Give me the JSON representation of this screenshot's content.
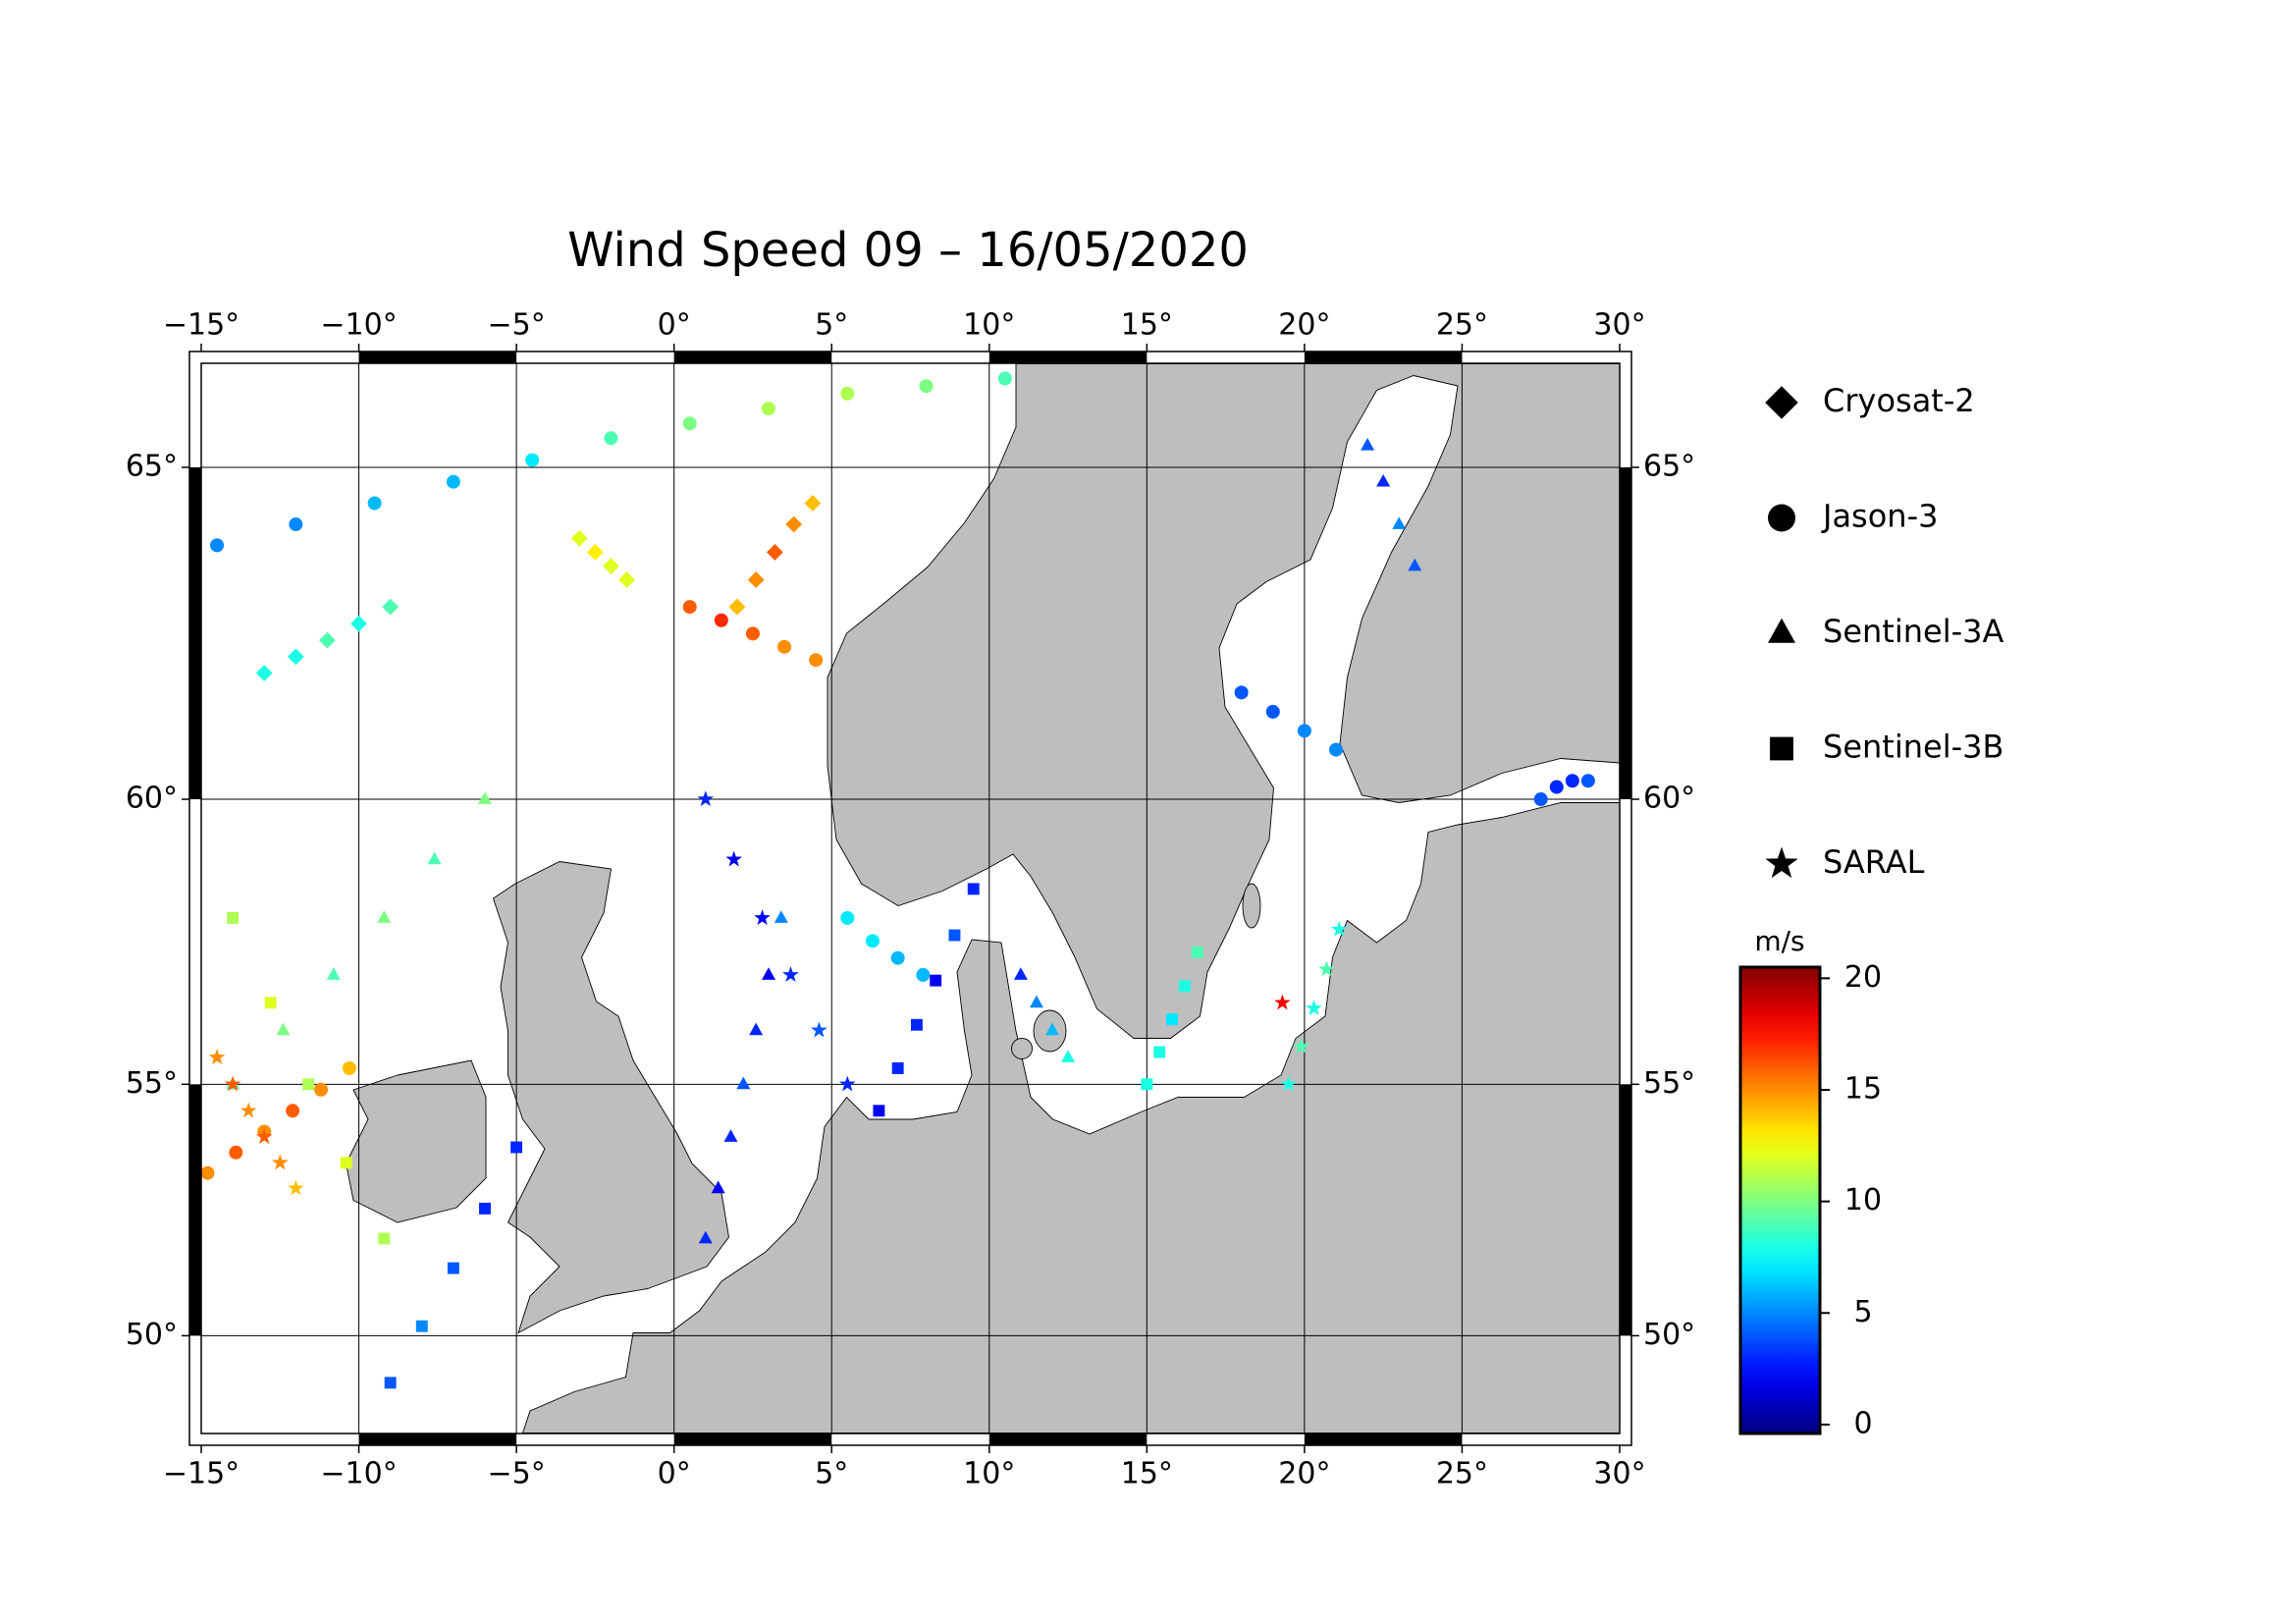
{
  "chart_data": {
    "type": "scatter",
    "title": "Wind Speed 09 – 16/05/2020",
    "projection": "mercator",
    "grid": true,
    "legend": "right",
    "xlim": [
      -15,
      30
    ],
    "ylim": [
      47.9,
      66.4
    ],
    "xticks": [
      {
        "value": -15,
        "label": "−15°"
      },
      {
        "value": -10,
        "label": "−10°"
      },
      {
        "value": -5,
        "label": "−5°"
      },
      {
        "value": 0,
        "label": "0°"
      },
      {
        "value": 5,
        "label": "5°"
      },
      {
        "value": 10,
        "label": "10°"
      },
      {
        "value": 15,
        "label": "15°"
      },
      {
        "value": 20,
        "label": "20°"
      },
      {
        "value": 25,
        "label": "25°"
      },
      {
        "value": 30,
        "label": "30°"
      }
    ],
    "yticks": [
      {
        "value": 50,
        "label": "50°"
      },
      {
        "value": 55,
        "label": "55°"
      },
      {
        "value": 60,
        "label": "60°"
      },
      {
        "value": 65,
        "label": "65°"
      }
    ],
    "colorbar": {
      "label": "m/s",
      "colormap": "jet",
      "clim": [
        -0.4,
        20.5
      ],
      "ticks": [
        0,
        5,
        10,
        15,
        20
      ]
    },
    "series": [
      {
        "name": "Cryosat-2",
        "marker": "diamond",
        "color": "#000000",
        "x": [
          2,
          2.6,
          3.2,
          3.8,
          4.4,
          -13,
          -12,
          -11,
          -10,
          -9,
          -3,
          -2.5,
          -2,
          -1.5
        ],
        "y": [
          63,
          63.4,
          63.8,
          64.2,
          64.5,
          62,
          62.25,
          62.5,
          62.75,
          63,
          64,
          63.8,
          63.6,
          63.4
        ],
        "values": [
          14,
          15,
          16,
          15,
          14,
          8,
          8,
          9,
          8,
          9,
          12,
          13,
          12,
          12
        ]
      },
      {
        "name": "Jason-3",
        "marker": "circle",
        "color": "#000000",
        "x": [
          -14.5,
          -12,
          -9.5,
          -7,
          -4.5,
          -2,
          0.5,
          3,
          5.5,
          8,
          10.5,
          -14.8,
          -13.9,
          -13,
          -12.1,
          -11.2,
          -10.3,
          0.5,
          1.5,
          2.5,
          3.5,
          4.5,
          18,
          19,
          20,
          21,
          5.5,
          6.3,
          7.1,
          7.9,
          27.5,
          28,
          28.5,
          29
        ],
        "y": [
          63.9,
          64.2,
          64.5,
          64.8,
          65.1,
          65.4,
          65.6,
          65.8,
          66,
          66.1,
          66.2,
          53.3,
          53.7,
          54.1,
          54.5,
          54.9,
          55.3,
          63,
          62.8,
          62.6,
          62.4,
          62.2,
          61.7,
          61.4,
          61.1,
          60.8,
          58,
          57.6,
          57.3,
          57,
          60,
          60.2,
          60.3,
          60.3
        ],
        "values": [
          5,
          5,
          6,
          6,
          7,
          9,
          10,
          11,
          11,
          10,
          9,
          15,
          16,
          15,
          16,
          15,
          14,
          16,
          17,
          16,
          15,
          15,
          4,
          4,
          5,
          5,
          7,
          7,
          6,
          6,
          4,
          3,
          3,
          4
        ]
      },
      {
        "name": "Sentinel-3A",
        "marker": "triangle",
        "color": "#000000",
        "x": [
          1,
          1.4,
          1.8,
          2.2,
          2.6,
          3,
          3.4,
          22,
          22.5,
          23,
          23.5,
          -14,
          -12.4,
          -10.8,
          -9.2,
          -7.6,
          -6,
          11,
          11.5,
          12,
          12.5
        ],
        "y": [
          52,
          53,
          54,
          55,
          56,
          57,
          58,
          65.3,
          64.8,
          64.2,
          63.6,
          55,
          56,
          57,
          58,
          59,
          60,
          57,
          56.5,
          56,
          55.5
        ],
        "values": [
          3,
          2,
          3,
          4,
          3,
          2,
          5,
          4,
          3,
          5,
          4,
          9,
          10,
          9,
          10,
          9,
          10,
          3,
          5,
          6,
          8
        ]
      },
      {
        "name": "Sentinel-3B",
        "marker": "square",
        "color": "#000000",
        "x": [
          6.5,
          7.1,
          7.7,
          8.3,
          8.9,
          9.5,
          -14,
          -12.8,
          -11.6,
          -10.4,
          -9.2,
          15,
          15.4,
          15.8,
          16.2,
          16.6,
          -9,
          -8,
          -7,
          -6,
          -5
        ],
        "y": [
          54.5,
          55.3,
          56.1,
          56.9,
          57.7,
          58.5,
          58,
          56.5,
          55,
          53.5,
          52,
          55,
          55.6,
          56.2,
          56.8,
          57.4,
          49,
          50.2,
          51.4,
          52.6,
          53.8
        ],
        "values": [
          2,
          3,
          3,
          2,
          4,
          3,
          11,
          12,
          11,
          12,
          11,
          8,
          8,
          7,
          8,
          9,
          4,
          5,
          4,
          3,
          3
        ]
      },
      {
        "name": "SARAL",
        "marker": "star",
        "color": "#000000",
        "x": [
          1,
          1.9,
          2.8,
          3.7,
          4.6,
          5.5,
          19.5,
          19.9,
          20.3,
          20.7,
          21.1,
          -14.5,
          -14,
          -13.5,
          -13,
          -12.5,
          -12,
          19.3
        ],
        "y": [
          60,
          59,
          58,
          57,
          56,
          55,
          55,
          55.7,
          56.4,
          57.1,
          57.8,
          55.5,
          55,
          54.5,
          54,
          53.5,
          53,
          56.5
        ],
        "values": [
          3,
          2,
          2,
          3,
          4,
          3,
          8,
          9,
          8,
          9,
          8,
          15,
          16,
          15,
          16,
          15,
          14,
          18
        ]
      }
    ]
  }
}
